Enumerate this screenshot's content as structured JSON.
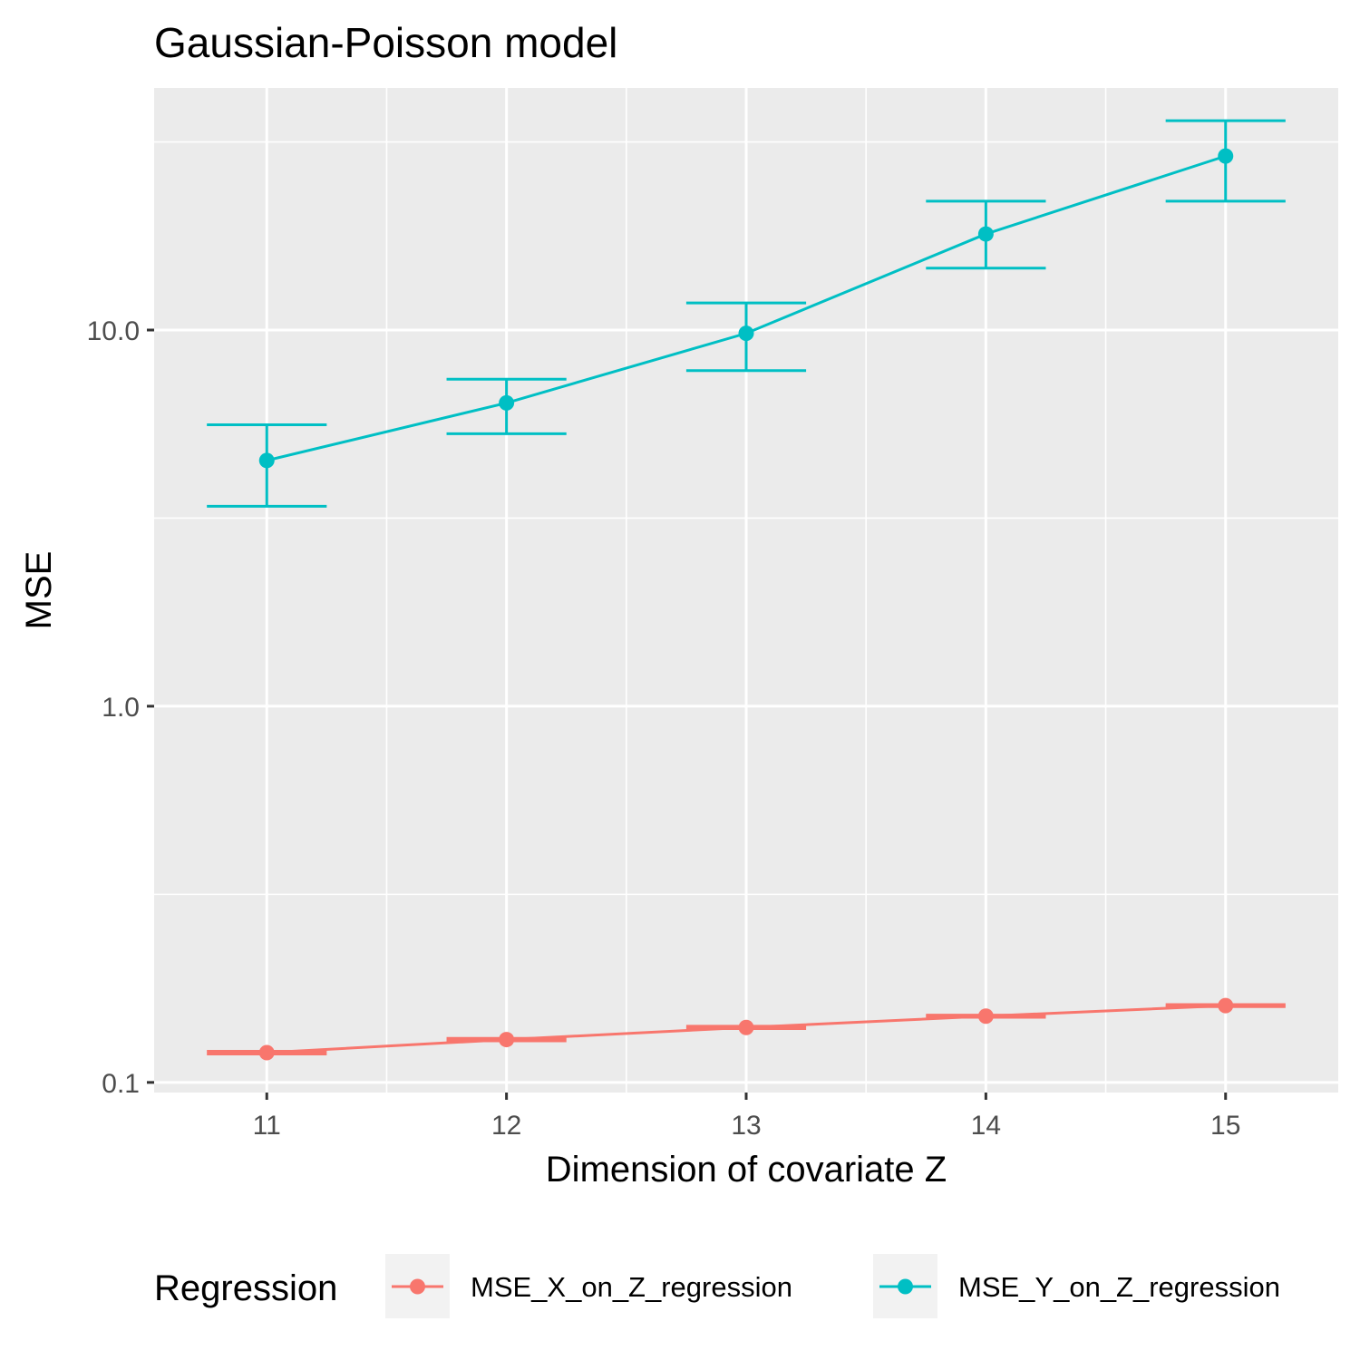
{
  "chart_data": {
    "type": "line",
    "title": "Gaussian-Poisson model",
    "xlabel": "Dimension of covariate Z",
    "ylabel": "MSE",
    "y_scale": "log10",
    "x_ticks": [
      11,
      12,
      13,
      14,
      15
    ],
    "y_ticks": [
      0.1,
      1.0,
      10.0
    ],
    "y_tick_labels": [
      "0.1",
      "1.0",
      "10.0"
    ],
    "xlim": [
      10.53,
      15.47
    ],
    "ylim": [
      0.094,
      44
    ],
    "grid": true,
    "legend": {
      "title": "Regression",
      "placement": "bottom"
    },
    "series": [
      {
        "name": "MSE_X_on_Z_regression",
        "color": "#F8766D",
        "x": [
          11,
          12,
          13,
          14,
          15
        ],
        "y": [
          0.12,
          0.13,
          0.14,
          0.15,
          0.16
        ],
        "ymin": [
          0.119,
          0.129,
          0.139,
          0.149,
          0.159
        ],
        "ymax": [
          0.121,
          0.131,
          0.141,
          0.151,
          0.161
        ]
      },
      {
        "name": "MSE_Y_on_Z_regression",
        "color": "#00BFC4",
        "x": [
          11,
          12,
          13,
          14,
          15
        ],
        "y": [
          4.5,
          6.4,
          9.8,
          18.0,
          29.0
        ],
        "ymin": [
          3.4,
          5.3,
          7.8,
          14.6,
          22.0
        ],
        "ymax": [
          5.6,
          7.4,
          11.8,
          22.0,
          36.0
        ]
      }
    ]
  }
}
